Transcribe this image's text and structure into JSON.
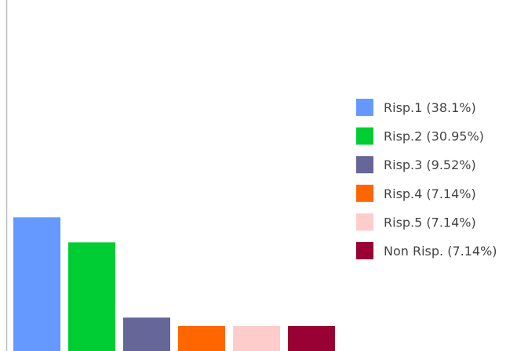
{
  "chart_data": {
    "type": "bar",
    "categories": [
      "Risp.1",
      "Risp.2",
      "Risp.3",
      "Risp.4",
      "Risp.5",
      "Non Risp."
    ],
    "values": [
      38.1,
      30.95,
      9.52,
      7.14,
      7.14,
      7.14
    ],
    "unit": "%",
    "colors": [
      "#6699ff",
      "#00cc33",
      "#666699",
      "#ff6600",
      "#ffcccc",
      "#990033"
    ],
    "legend": [
      "Risp.1 (38.1%)",
      "Risp.2 (30.95%)",
      "Risp.3 (9.52%)",
      "Risp.4 (7.14%)",
      "Risp.5 (7.14%)",
      "Non Risp. (7.14%)"
    ],
    "legend_position": "right",
    "grid": false,
    "ylim": [
      0,
      100
    ]
  }
}
